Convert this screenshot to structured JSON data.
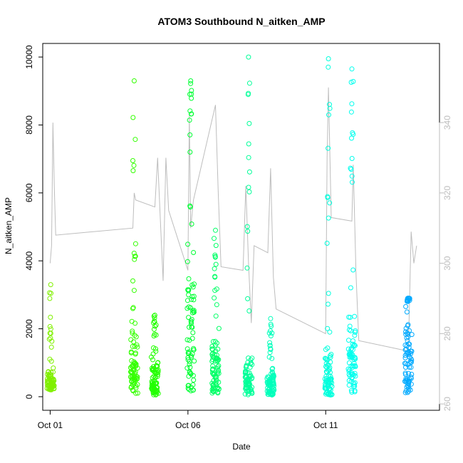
{
  "chart_data": {
    "type": "scatter",
    "title": "ATOM3 Southbound N_aitken_AMP",
    "xlabel": "Date",
    "ylabel": "N_aitken_AMP",
    "y2label": "",
    "x_ticks": [
      {
        "label": "Oct 01",
        "day": 1
      },
      {
        "label": "Oct 06",
        "day": 6
      },
      {
        "label": "Oct 11",
        "day": 11
      }
    ],
    "xlim": [
      0.73,
      15.13
    ],
    "ylim": [
      -400,
      10400
    ],
    "y_ticks": [
      0,
      2000,
      4000,
      6000,
      8000,
      10000
    ],
    "y2lim": [
      258.2,
      362.5
    ],
    "y2_ticks": [
      260,
      280,
      300,
      320,
      340
    ],
    "point_colors_note": "points colored by time, yellow-green to blue",
    "series": [
      {
        "day": 1.02,
        "y_main": [
          200,
          900
        ],
        "y_max": 3300,
        "color": "#80f000"
      },
      {
        "day": 4.05,
        "y_main": [
          100,
          2500
        ],
        "y_max": 9300,
        "color": "#33ff00"
      },
      {
        "day": 4.8,
        "y_main": [
          50,
          1300
        ],
        "y_max": 2400,
        "color": "#22ff00"
      },
      {
        "day": 6.1,
        "y_main": [
          150,
          5000
        ],
        "y_max": 9300,
        "color": "#00ff33"
      },
      {
        "day": 7.0,
        "y_main": [
          100,
          2200
        ],
        "y_max": 4900,
        "color": "#00ff66"
      },
      {
        "day": 8.2,
        "y_main": [
          50,
          1500
        ],
        "y_max": 10000,
        "color": "#00ff99"
      },
      {
        "day": 9.0,
        "y_main": [
          50,
          1000
        ],
        "y_max": 2300,
        "color": "#00ffbb"
      },
      {
        "day": 11.1,
        "y_main": [
          50,
          1600
        ],
        "y_max": 9950,
        "color": "#00ffdd"
      },
      {
        "day": 11.95,
        "y_main": [
          100,
          3000
        ],
        "y_max": 9650,
        "color": "#00ffee"
      },
      {
        "day": 14.0,
        "y_main": [
          100,
          2800
        ],
        "y_max": 2900,
        "color": "#00aaff"
      }
    ],
    "secondary_line": {
      "color": "#bdbdbd",
      "points": [
        [
          1.0,
          300
        ],
        [
          1.05,
          305
        ],
        [
          1.1,
          340
        ],
        [
          1.15,
          322
        ],
        [
          1.2,
          308
        ],
        [
          4.0,
          310
        ],
        [
          4.05,
          320
        ],
        [
          4.1,
          318
        ],
        [
          4.8,
          316
        ],
        [
          4.9,
          330
        ],
        [
          5.0,
          312
        ],
        [
          5.1,
          295
        ],
        [
          5.2,
          330
        ],
        [
          5.3,
          315
        ],
        [
          6.0,
          298
        ],
        [
          6.05,
          342
        ],
        [
          6.1,
          310
        ],
        [
          6.2,
          318
        ],
        [
          7.0,
          345
        ],
        [
          7.1,
          320
        ],
        [
          7.2,
          299
        ],
        [
          8.0,
          298
        ],
        [
          8.1,
          322
        ],
        [
          8.2,
          300
        ],
        [
          8.3,
          283
        ],
        [
          8.4,
          305
        ],
        [
          8.9,
          303
        ],
        [
          9.0,
          327
        ],
        [
          9.1,
          296
        ],
        [
          9.2,
          287
        ],
        [
          11.0,
          280
        ],
        [
          11.05,
          330
        ],
        [
          11.1,
          350
        ],
        [
          11.2,
          313
        ],
        [
          11.95,
          312
        ],
        [
          12.0,
          328
        ],
        [
          12.1,
          297
        ],
        [
          12.2,
          278
        ],
        [
          14.0,
          275
        ],
        [
          14.1,
          309
        ],
        [
          14.2,
          300
        ],
        [
          14.3,
          305
        ]
      ]
    }
  }
}
